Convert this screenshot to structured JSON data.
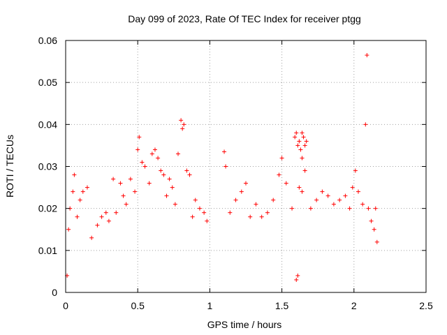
{
  "chart_data": {
    "type": "scatter",
    "title": "Day 099 of 2023, Rate Of TEC Index for receiver ptgg",
    "xlabel": "GPS time / hours",
    "ylabel": "ROTI / TECUs",
    "xlim": [
      0,
      2.5
    ],
    "ylim": [
      0,
      0.06
    ],
    "x_ticks": [
      "0",
      "0.5",
      "1",
      "1.5",
      "2",
      "2.5"
    ],
    "y_ticks": [
      "0",
      "0.01",
      "0.02",
      "0.03",
      "0.04",
      "0.05",
      "0.06"
    ],
    "grid": true,
    "marker": "plus",
    "color": "#ff0000",
    "series": [
      {
        "points": [
          [
            0.01,
            0.004
          ],
          [
            0.02,
            0.015
          ],
          [
            0.03,
            0.02
          ],
          [
            0.05,
            0.024
          ],
          [
            0.06,
            0.028
          ],
          [
            0.08,
            0.018
          ],
          [
            0.1,
            0.022
          ],
          [
            0.12,
            0.024
          ],
          [
            0.15,
            0.025
          ],
          [
            0.18,
            0.013
          ],
          [
            0.22,
            0.016
          ],
          [
            0.25,
            0.018
          ],
          [
            0.28,
            0.019
          ],
          [
            0.3,
            0.017
          ],
          [
            0.33,
            0.027
          ],
          [
            0.35,
            0.019
          ],
          [
            0.38,
            0.026
          ],
          [
            0.4,
            0.023
          ],
          [
            0.42,
            0.021
          ],
          [
            0.45,
            0.027
          ],
          [
            0.48,
            0.024
          ],
          [
            0.5,
            0.034
          ],
          [
            0.51,
            0.037
          ],
          [
            0.53,
            0.031
          ],
          [
            0.55,
            0.03
          ],
          [
            0.58,
            0.026
          ],
          [
            0.6,
            0.033
          ],
          [
            0.62,
            0.034
          ],
          [
            0.64,
            0.032
          ],
          [
            0.66,
            0.029
          ],
          [
            0.68,
            0.028
          ],
          [
            0.7,
            0.023
          ],
          [
            0.72,
            0.027
          ],
          [
            0.74,
            0.025
          ],
          [
            0.76,
            0.021
          ],
          [
            0.78,
            0.033
          ],
          [
            0.8,
            0.041
          ],
          [
            0.81,
            0.039
          ],
          [
            0.82,
            0.04
          ],
          [
            0.84,
            0.029
          ],
          [
            0.86,
            0.028
          ],
          [
            0.88,
            0.018
          ],
          [
            0.9,
            0.022
          ],
          [
            0.93,
            0.02
          ],
          [
            0.96,
            0.019
          ],
          [
            0.98,
            0.017
          ],
          [
            1.1,
            0.0335
          ],
          [
            1.11,
            0.03
          ],
          [
            1.14,
            0.019
          ],
          [
            1.18,
            0.022
          ],
          [
            1.22,
            0.024
          ],
          [
            1.25,
            0.026
          ],
          [
            1.28,
            0.018
          ],
          [
            1.32,
            0.021
          ],
          [
            1.36,
            0.018
          ],
          [
            1.4,
            0.019
          ],
          [
            1.44,
            0.022
          ],
          [
            1.48,
            0.028
          ],
          [
            1.5,
            0.032
          ],
          [
            1.53,
            0.026
          ],
          [
            1.57,
            0.02
          ],
          [
            1.59,
            0.037
          ],
          [
            1.6,
            0.038
          ],
          [
            1.61,
            0.035
          ],
          [
            1.62,
            0.036
          ],
          [
            1.63,
            0.034
          ],
          [
            1.64,
            0.038
          ],
          [
            1.65,
            0.037
          ],
          [
            1.66,
            0.035
          ],
          [
            1.67,
            0.036
          ],
          [
            1.64,
            0.032
          ],
          [
            1.66,
            0.029
          ],
          [
            1.62,
            0.025
          ],
          [
            1.64,
            0.024
          ],
          [
            1.6,
            0.003
          ],
          [
            1.61,
            0.004
          ],
          [
            1.7,
            0.02
          ],
          [
            1.74,
            0.022
          ],
          [
            1.78,
            0.024
          ],
          [
            1.82,
            0.023
          ],
          [
            1.86,
            0.021
          ],
          [
            1.9,
            0.022
          ],
          [
            1.94,
            0.023
          ],
          [
            1.97,
            0.02
          ],
          [
            1.99,
            0.025
          ],
          [
            2.01,
            0.029
          ],
          [
            2.03,
            0.024
          ],
          [
            2.06,
            0.021
          ],
          [
            2.08,
            0.04
          ],
          [
            2.09,
            0.0565
          ],
          [
            2.1,
            0.02
          ],
          [
            2.12,
            0.017
          ],
          [
            2.14,
            0.015
          ],
          [
            2.15,
            0.02
          ],
          [
            2.16,
            0.012
          ]
        ]
      }
    ]
  }
}
